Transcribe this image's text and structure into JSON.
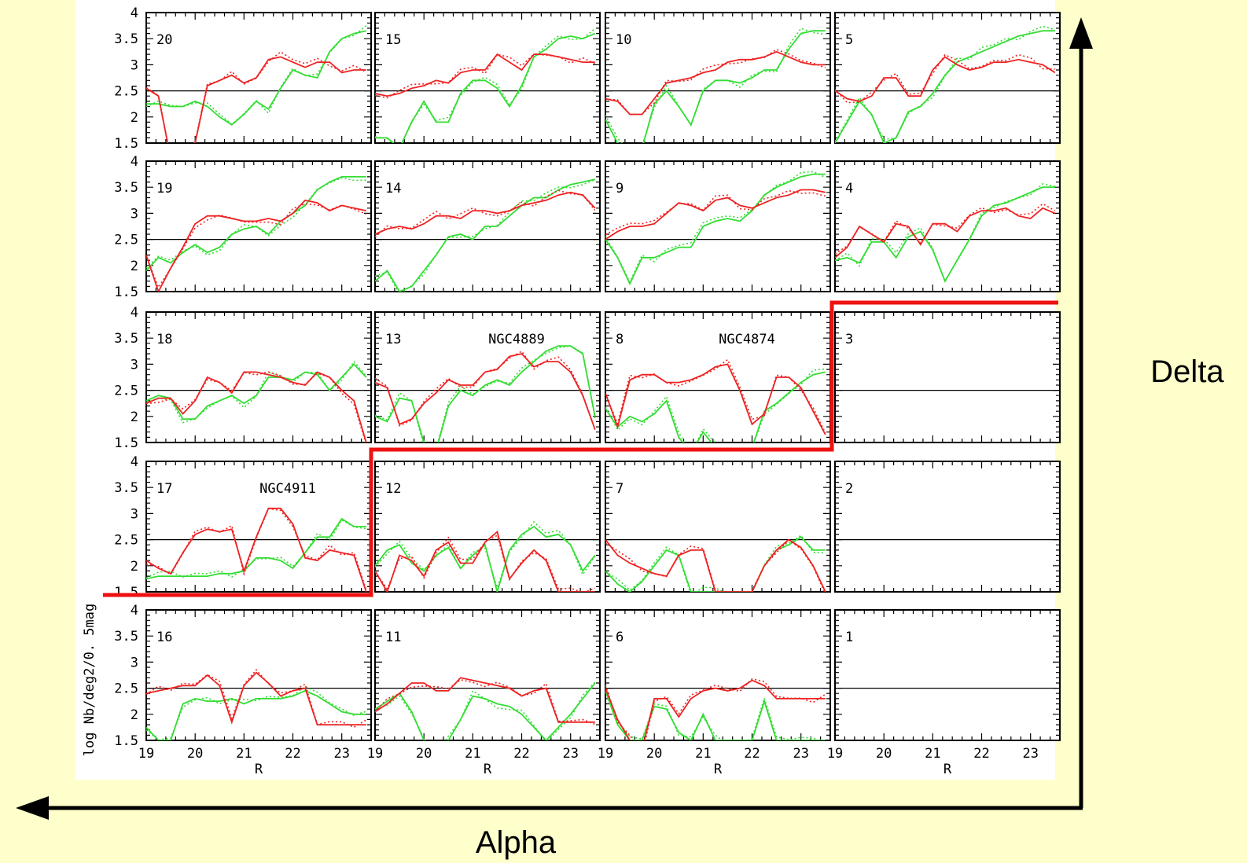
{
  "figure": {
    "ylabel": "log Nb/deg2/0. 5mag",
    "xlabel": "R",
    "x_axis_arrow_label": "Alpha",
    "y_axis_arrow_label": "Delta"
  },
  "colors": {
    "background": "#ffffcc",
    "plot_background": "#ffffff",
    "red": "#ee2222",
    "green": "#33dd33",
    "boundary": "#ee1111",
    "axes": "#000000"
  },
  "chart_data": {
    "type": "line",
    "layout": "5x4 panel grid",
    "xlim": [
      19,
      23.6
    ],
    "ylim": [
      1.5,
      4
    ],
    "xticks": [
      "19",
      "20",
      "21",
      "22",
      "23"
    ],
    "yticks": [
      "1.5",
      "2",
      "2.5",
      "3",
      "3.5",
      "4"
    ],
    "reference_line_y": 2.5,
    "x_mag_grid": [
      19,
      19.25,
      19.5,
      19.75,
      20,
      20.25,
      20.5,
      20.75,
      21,
      21.25,
      21.5,
      21.75,
      22,
      22.25,
      22.5,
      22.75,
      23,
      23.25,
      23.5
    ],
    "series_styles": [
      {
        "color": "red",
        "style": "solid"
      },
      {
        "color": "red",
        "style": "dotted"
      },
      {
        "color": "green",
        "style": "solid"
      },
      {
        "color": "green",
        "style": "dotted"
      }
    ],
    "panels": [
      {
        "id": "20",
        "row": 0,
        "col": 0,
        "label": "",
        "red": [
          2.55,
          2.4,
          1.2,
          1.2,
          1.5,
          2.6,
          2.7,
          2.8,
          2.65,
          2.75,
          3.1,
          3.15,
          3.05,
          2.95,
          3.05,
          3.05,
          2.85,
          2.9,
          2.9
        ],
        "green": [
          2.25,
          2.25,
          2.2,
          2.2,
          2.3,
          2.2,
          2.0,
          1.85,
          2.05,
          2.3,
          2.15,
          2.55,
          2.9,
          2.8,
          2.75,
          3.25,
          3.5,
          3.6,
          3.65
        ]
      },
      {
        "id": "15",
        "row": 0,
        "col": 1,
        "label": "",
        "red": [
          2.45,
          2.4,
          2.45,
          2.55,
          2.6,
          2.7,
          2.65,
          2.85,
          2.9,
          2.9,
          3.2,
          3.05,
          2.9,
          3.2,
          3.2,
          3.15,
          3.1,
          3.05,
          3.05
        ],
        "green": [
          1.6,
          1.6,
          1.4,
          1.9,
          2.3,
          1.9,
          1.9,
          2.45,
          2.7,
          2.7,
          2.55,
          2.2,
          2.6,
          3.15,
          3.3,
          3.5,
          3.55,
          3.5,
          3.6
        ]
      },
      {
        "id": "10",
        "row": 0,
        "col": 2,
        "label": "",
        "red": [
          2.35,
          2.3,
          2.05,
          2.05,
          2.35,
          2.65,
          2.7,
          2.75,
          2.85,
          2.9,
          3.05,
          3.1,
          3.1,
          3.15,
          3.25,
          3.15,
          3.05,
          3.0,
          3.0
        ],
        "green": [
          1.95,
          1.5,
          1.4,
          1.4,
          2.25,
          2.5,
          2.2,
          1.85,
          2.5,
          2.7,
          2.7,
          2.65,
          2.75,
          2.9,
          2.9,
          3.3,
          3.6,
          3.65,
          3.65
        ]
      },
      {
        "id": "5",
        "row": 0,
        "col": 3,
        "label": "",
        "red": [
          2.5,
          2.35,
          2.3,
          2.4,
          2.75,
          2.75,
          2.4,
          2.4,
          2.9,
          3.15,
          3.0,
          2.9,
          2.95,
          3.05,
          3.05,
          3.1,
          3.05,
          3.0,
          2.85
        ],
        "green": [
          1.5,
          1.9,
          2.3,
          2.05,
          1.5,
          1.6,
          2.1,
          2.2,
          2.45,
          2.8,
          3.05,
          3.15,
          3.25,
          3.35,
          3.45,
          3.55,
          3.6,
          3.65,
          3.65
        ]
      },
      {
        "id": "19",
        "row": 1,
        "col": 0,
        "label": "",
        "red": [
          2.2,
          1.5,
          1.95,
          2.35,
          2.8,
          2.95,
          2.95,
          2.9,
          2.85,
          2.85,
          2.9,
          2.85,
          3.0,
          3.25,
          3.2,
          3.05,
          3.15,
          3.1,
          3.05
        ],
        "green": [
          1.9,
          2.15,
          2.05,
          2.25,
          2.4,
          2.25,
          2.35,
          2.6,
          2.7,
          2.75,
          2.6,
          2.85,
          3.0,
          3.15,
          3.45,
          3.6,
          3.7,
          3.7,
          3.7
        ]
      },
      {
        "id": "14",
        "row": 1,
        "col": 1,
        "label": "",
        "red": [
          2.6,
          2.7,
          2.75,
          2.7,
          2.8,
          2.95,
          2.95,
          2.9,
          3.05,
          3.05,
          3.0,
          3.05,
          3.15,
          3.2,
          3.25,
          3.35,
          3.4,
          3.35,
          3.1
        ],
        "green": [
          1.7,
          1.9,
          1.5,
          1.6,
          1.9,
          2.2,
          2.55,
          2.6,
          2.5,
          2.75,
          2.75,
          2.95,
          3.15,
          3.3,
          3.3,
          3.45,
          3.55,
          3.6,
          3.65
        ]
      },
      {
        "id": "9",
        "row": 1,
        "col": 2,
        "label": "",
        "red": [
          2.5,
          2.65,
          2.75,
          2.75,
          2.8,
          3.0,
          3.2,
          3.15,
          3.05,
          3.25,
          3.3,
          3.15,
          3.1,
          3.2,
          3.3,
          3.35,
          3.45,
          3.45,
          3.4
        ],
        "green": [
          2.5,
          2.15,
          1.65,
          2.15,
          2.15,
          2.25,
          2.35,
          2.35,
          2.75,
          2.85,
          2.9,
          2.85,
          3.05,
          3.35,
          3.5,
          3.6,
          3.7,
          3.75,
          3.75
        ]
      },
      {
        "id": "4",
        "row": 1,
        "col": 3,
        "label": "",
        "red": [
          2.15,
          2.35,
          2.75,
          2.6,
          2.45,
          2.8,
          2.75,
          2.4,
          2.8,
          2.8,
          2.65,
          2.95,
          3.05,
          3.05,
          3.1,
          2.95,
          2.9,
          3.1,
          3.0
        ],
        "green": [
          2.1,
          2.15,
          2.05,
          2.45,
          2.45,
          2.15,
          2.55,
          2.65,
          2.3,
          1.7,
          2.1,
          2.5,
          2.95,
          3.15,
          3.2,
          3.3,
          3.4,
          3.5,
          3.5
        ]
      },
      {
        "id": "18",
        "row": 2,
        "col": 0,
        "label": "",
        "red": [
          2.25,
          2.35,
          2.35,
          2.05,
          2.3,
          2.75,
          2.65,
          2.45,
          2.85,
          2.85,
          2.8,
          2.75,
          2.65,
          2.6,
          2.85,
          2.75,
          2.5,
          2.3,
          1.5
        ],
        "green": [
          2.3,
          2.4,
          2.35,
          1.95,
          1.95,
          2.2,
          2.3,
          2.4,
          2.25,
          2.4,
          2.75,
          2.75,
          2.7,
          2.85,
          2.8,
          2.5,
          2.75,
          3.0,
          2.75
        ]
      },
      {
        "id": "13",
        "row": 2,
        "col": 1,
        "label": "NGC4889",
        "red": [
          2.65,
          2.55,
          1.85,
          1.95,
          2.25,
          2.45,
          2.7,
          2.6,
          2.6,
          2.85,
          2.9,
          3.15,
          3.2,
          2.95,
          3.05,
          3.05,
          2.85,
          2.4,
          1.75
        ],
        "green": [
          2.0,
          1.9,
          2.35,
          2.3,
          1.5,
          1.35,
          2.2,
          2.5,
          2.4,
          2.6,
          2.7,
          2.6,
          2.85,
          3.05,
          3.25,
          3.35,
          3.35,
          3.2,
          2.0
        ]
      },
      {
        "id": "8",
        "row": 2,
        "col": 2,
        "label": "NGC4874",
        "red": [
          2.45,
          1.8,
          2.7,
          2.8,
          2.8,
          2.65,
          2.65,
          2.7,
          2.8,
          2.95,
          3.0,
          2.5,
          1.85,
          2.05,
          2.75,
          2.75,
          2.55,
          2.1,
          1.65
        ],
        "green": [
          2.15,
          1.8,
          2.0,
          1.9,
          2.05,
          2.3,
          1.6,
          1.3,
          1.7,
          1.4,
          1.4,
          1.4,
          1.4,
          2.1,
          2.25,
          2.45,
          2.65,
          2.8,
          2.85
        ]
      },
      {
        "id": "3",
        "row": 2,
        "col": 3,
        "label": "",
        "red": [],
        "green": []
      },
      {
        "id": "17",
        "row": 3,
        "col": 0,
        "label": "NGC4911",
        "red": [
          2.1,
          1.95,
          1.85,
          2.25,
          2.6,
          2.7,
          2.65,
          2.7,
          1.9,
          2.55,
          3.1,
          3.1,
          2.8,
          2.15,
          2.1,
          2.3,
          2.25,
          2.2,
          1.5
        ],
        "green": [
          1.75,
          1.8,
          1.8,
          1.8,
          1.8,
          1.8,
          1.85,
          1.85,
          1.9,
          2.15,
          2.15,
          2.1,
          1.95,
          2.25,
          2.55,
          2.55,
          2.9,
          2.75,
          2.75
        ]
      },
      {
        "id": "12",
        "row": 3,
        "col": 1,
        "label": "",
        "red": [
          1.9,
          1.5,
          2.2,
          2.1,
          1.8,
          2.3,
          2.45,
          2.05,
          2.05,
          2.45,
          2.65,
          1.75,
          2.05,
          2.3,
          2.1,
          1.5,
          1.5,
          1.5,
          1.5
        ],
        "green": [
          2.0,
          2.3,
          2.4,
          2.05,
          1.9,
          2.2,
          2.35,
          1.95,
          2.2,
          2.4,
          1.5,
          2.3,
          2.6,
          2.75,
          2.55,
          2.6,
          2.4,
          1.9,
          2.2
        ]
      },
      {
        "id": "7",
        "row": 3,
        "col": 2,
        "label": "",
        "red": [
          2.5,
          2.2,
          2.05,
          1.95,
          1.85,
          1.8,
          2.2,
          2.3,
          2.3,
          1.5,
          1.5,
          1.5,
          1.5,
          2.0,
          2.3,
          2.5,
          2.35,
          2.0,
          1.5
        ],
        "green": [
          1.9,
          1.65,
          1.5,
          1.7,
          2.0,
          2.3,
          2.2,
          1.5,
          1.5,
          1.5,
          1.5,
          1.5,
          1.5,
          2.0,
          2.3,
          2.4,
          2.55,
          2.3,
          2.3
        ]
      },
      {
        "id": "2",
        "row": 3,
        "col": 3,
        "label": "",
        "red": [],
        "green": []
      },
      {
        "id": "16",
        "row": 4,
        "col": 0,
        "label": "",
        "red": [
          2.4,
          2.45,
          2.5,
          2.55,
          2.55,
          2.75,
          2.55,
          1.85,
          2.55,
          2.8,
          2.6,
          2.35,
          2.45,
          2.5,
          1.8,
          1.8,
          1.8,
          1.8,
          1.8
        ],
        "green": [
          1.75,
          1.5,
          1.5,
          2.2,
          2.3,
          2.25,
          2.25,
          2.3,
          2.2,
          2.3,
          2.3,
          2.3,
          2.35,
          2.45,
          2.35,
          2.2,
          2.05,
          2.0,
          2.0
        ]
      },
      {
        "id": "11",
        "row": 4,
        "col": 1,
        "label": "",
        "red": [
          2.05,
          2.2,
          2.4,
          2.6,
          2.6,
          2.45,
          2.45,
          2.7,
          2.65,
          2.6,
          2.55,
          2.5,
          2.35,
          2.45,
          2.5,
          1.85,
          1.85,
          1.85,
          1.85
        ],
        "green": [
          2.1,
          2.25,
          2.4,
          2.05,
          1.5,
          1.3,
          1.5,
          1.9,
          2.35,
          2.3,
          2.2,
          2.15,
          2.0,
          1.75,
          1.5,
          1.75,
          2.0,
          2.3,
          2.6
        ]
      },
      {
        "id": "6",
        "row": 4,
        "col": 2,
        "label": "",
        "red": [
          2.5,
          1.9,
          1.5,
          1.3,
          2.3,
          2.3,
          1.95,
          2.3,
          2.45,
          2.5,
          2.45,
          2.5,
          2.65,
          2.55,
          2.3,
          2.3,
          2.3,
          2.3,
          2.3
        ],
        "green": [
          2.45,
          1.8,
          1.5,
          1.5,
          2.15,
          2.1,
          1.65,
          1.5,
          2.0,
          1.5,
          1.5,
          1.5,
          1.5,
          2.25,
          1.5,
          1.5,
          1.5,
          1.5,
          1.5
        ]
      },
      {
        "id": "1",
        "row": 4,
        "col": 3,
        "label": "",
        "red": [],
        "green": []
      }
    ]
  }
}
